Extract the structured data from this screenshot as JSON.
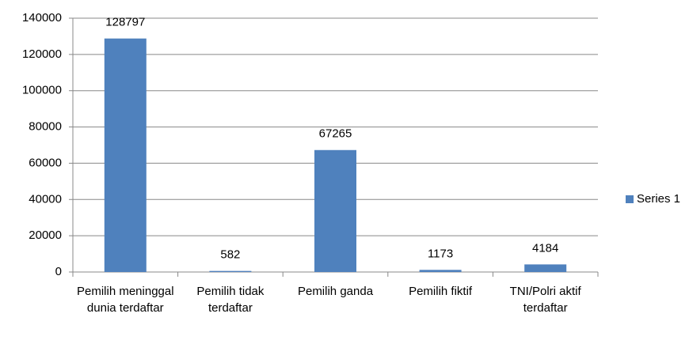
{
  "chart_data": {
    "type": "bar",
    "categories": [
      "Pemilih meninggal dunia terdaftar",
      "Pemilih tidak terdaftar",
      "Pemilih ganda",
      "Pemilih fiktif",
      "TNI/Polri aktif terdaftar"
    ],
    "series": [
      {
        "name": "Series 1",
        "color": "#4f81bd",
        "values": [
          128797,
          582,
          67265,
          1173,
          4184
        ]
      }
    ],
    "ylim": [
      0,
      140000
    ],
    "yticks": [
      0,
      20000,
      40000,
      60000,
      80000,
      100000,
      120000,
      140000
    ],
    "grid": true,
    "legend": "right"
  }
}
